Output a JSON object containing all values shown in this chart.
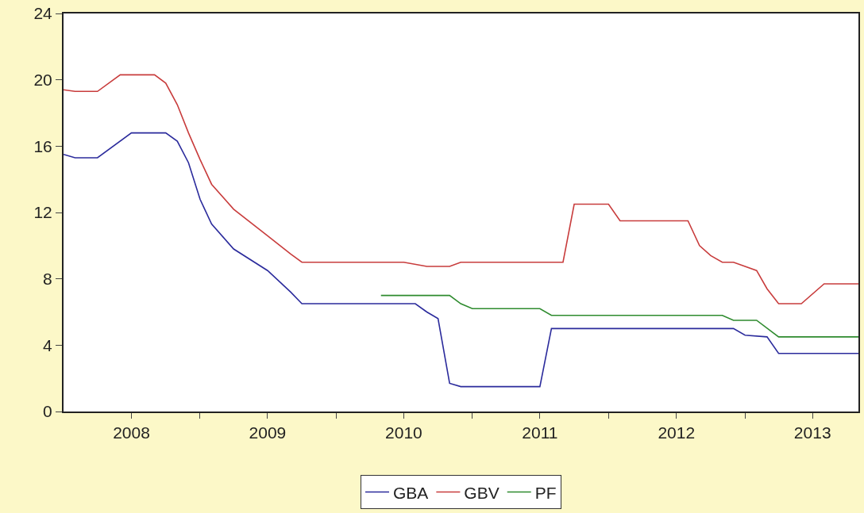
{
  "chart_data": {
    "type": "line",
    "xlim": [
      "2008-01",
      "2013-11"
    ],
    "ylim": [
      0,
      24
    ],
    "yticks": [
      0,
      4,
      8,
      12,
      16,
      20,
      24
    ],
    "xticks": [
      {
        "value": "2008-07",
        "label": "2008"
      },
      {
        "value": "2009-01",
        "label": null
      },
      {
        "value": "2009-07",
        "label": "2009"
      },
      {
        "value": "2010-01",
        "label": null
      },
      {
        "value": "2010-07",
        "label": "2010"
      },
      {
        "value": "2011-01",
        "label": null
      },
      {
        "value": "2011-07",
        "label": "2011"
      },
      {
        "value": "2012-01",
        "label": null
      },
      {
        "value": "2012-07",
        "label": "2012"
      },
      {
        "value": "2013-01",
        "label": null
      },
      {
        "value": "2013-07",
        "label": "2013"
      }
    ],
    "grid": false,
    "legend": "bottom",
    "line_style": "solid",
    "marker": "none",
    "series": [
      {
        "name": "GBA",
        "color": "#2b2b9c",
        "x": [
          "2008-01",
          "2008-02",
          "2008-04",
          "2008-07",
          "2008-10",
          "2008-11",
          "2008-12",
          "2009-01",
          "2009-02",
          "2009-04",
          "2009-07",
          "2009-09",
          "2009-10",
          "2010-08",
          "2010-09",
          "2010-10",
          "2010-11",
          "2010-12",
          "2011-07",
          "2011-08",
          "2012-12",
          "2013-01",
          "2013-03",
          "2013-04",
          "2013-11"
        ],
        "values": [
          15.5,
          15.3,
          15.3,
          16.8,
          16.8,
          16.3,
          15.0,
          12.8,
          11.3,
          9.8,
          8.5,
          7.2,
          6.5,
          6.5,
          6.0,
          5.6,
          1.7,
          1.5,
          1.5,
          5.0,
          5.0,
          4.6,
          4.5,
          3.5,
          3.5
        ]
      },
      {
        "name": "GBV",
        "color": "#c83c3c",
        "x": [
          "2008-01",
          "2008-02",
          "2008-04",
          "2008-06",
          "2008-09",
          "2008-10",
          "2008-11",
          "2008-12",
          "2009-01",
          "2009-02",
          "2009-04",
          "2009-07",
          "2009-09",
          "2009-10",
          "2010-07",
          "2010-09",
          "2010-11",
          "2010-12",
          "2011-09",
          "2011-10",
          "2012-01",
          "2012-02",
          "2012-08",
          "2012-09",
          "2012-10",
          "2012-11",
          "2012-12",
          "2013-02",
          "2013-03",
          "2013-04",
          "2013-06",
          "2013-08",
          "2013-11"
        ],
        "values": [
          19.4,
          19.3,
          19.3,
          20.3,
          20.3,
          19.8,
          18.5,
          16.8,
          15.2,
          13.7,
          12.2,
          10.6,
          9.5,
          9.0,
          9.0,
          8.75,
          8.75,
          9.0,
          9.0,
          12.5,
          12.5,
          11.5,
          11.5,
          10.0,
          9.4,
          9.0,
          9.0,
          8.5,
          7.4,
          6.5,
          6.5,
          7.7,
          7.7
        ]
      },
      {
        "name": "PF",
        "color": "#2e8b2e",
        "x": [
          "2010-05",
          "2010-11",
          "2010-12",
          "2011-01",
          "2011-07",
          "2011-08",
          "2012-11",
          "2012-12",
          "2013-02",
          "2013-04",
          "2013-11"
        ],
        "values": [
          7.0,
          7.0,
          6.5,
          6.2,
          6.2,
          5.8,
          5.8,
          5.5,
          5.5,
          4.5,
          4.5
        ]
      }
    ]
  }
}
